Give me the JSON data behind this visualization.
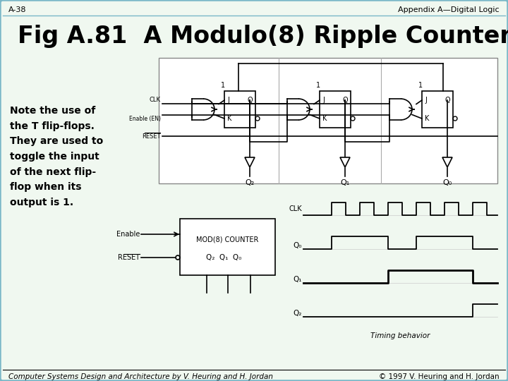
{
  "bg_color": "#f0f8f0",
  "border_color": "#7ab8c8",
  "title": "Fig A.81  A Modulo(8) Ripple Counter",
  "header_left": "A-38",
  "header_right": "Appendix A—Digital Logic",
  "footer_left": "Computer Systems Design and Architecture by V. Heuring and H. Jordan",
  "footer_right": "© 1997 V. Heuring and H. Jordan",
  "note_text": "Note the use of\nthe T flip-flops.\nThey are used to\ntoggle the input\nof the next flip-\nflop when its\noutput is 1.",
  "title_fontsize": 24,
  "header_fontsize": 8,
  "note_fontsize": 10,
  "footer_fontsize": 7.5
}
